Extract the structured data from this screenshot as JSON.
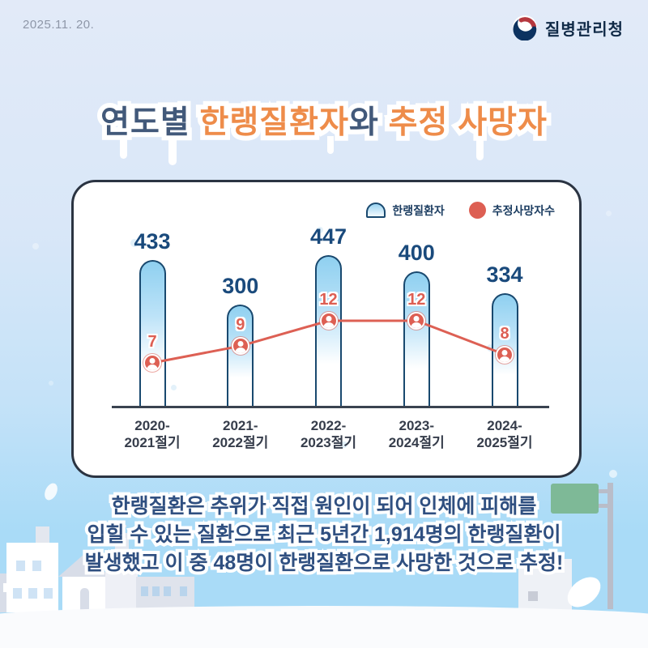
{
  "header": {
    "date": "2025.11. 20.",
    "agency_name": "질병관리청"
  },
  "title": {
    "part1": "연도별 ",
    "part2": "한랭질환자",
    "part3": "와 ",
    "part4": "추정 사망자",
    "full": "연도별 한랭질환자와 추정 사망자"
  },
  "chart_data": {
    "type": "bar",
    "title": "연도별 한랭질환자와 추정 사망자",
    "categories": [
      "2020-2021절기",
      "2021-2022절기",
      "2022-2023절기",
      "2023-2024절기",
      "2024-2025절기"
    ],
    "series": [
      {
        "name": "한랭질환자",
        "type": "bar",
        "values": [
          433,
          300,
          447,
          400,
          334
        ]
      },
      {
        "name": "추정사망자수",
        "type": "line",
        "values": [
          7,
          9,
          12,
          12,
          8
        ]
      }
    ],
    "legend_position": "top-right",
    "grid": false,
    "ylim_bar": [
      0,
      480
    ],
    "ylim_line": [
      0,
      14
    ]
  },
  "footer": {
    "line1": "한랭질환은 추위가 직접 원인이 되어 인체에 피해를",
    "line2": "입힐 수 있는 질환으로 최근 5년간 1,914명의 한랭질환이",
    "line3": "발생했고 이 중 48명이 한랭질환으로 사망한 것으로 추정!"
  },
  "colors": {
    "background_top": "#e2eaf8",
    "sky_bottom": "#a9dbf7",
    "navy_title": "#42597a",
    "orange_title": "#ee8c4a",
    "bar_fill": "#8fd0f0",
    "bar_border": "#19496f",
    "value_label": "#1a4a7c",
    "line_red": "#dd5f53",
    "footer_navy": "#2f4f80",
    "card_border": "#2b3442",
    "sign_green": "#7eb997"
  }
}
